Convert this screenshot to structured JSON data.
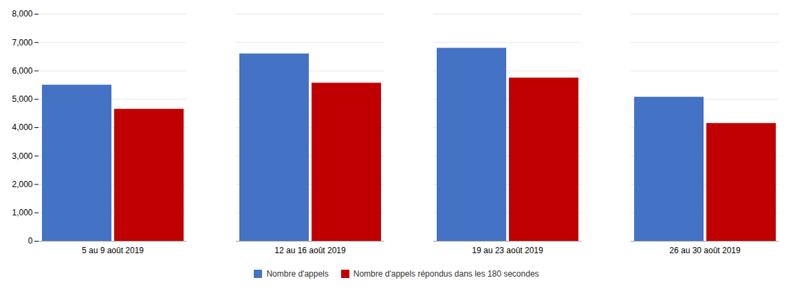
{
  "chart_data": {
    "type": "bar",
    "categories": [
      "5 au 9 août 2019",
      "12 au 16 août 2019",
      "19 au 23 août 2019",
      "26 au 30 août 2019"
    ],
    "series": [
      {
        "name": "Nombre d'appels",
        "color": "#4472C4",
        "values": [
          5500,
          6600,
          6800,
          5075
        ]
      },
      {
        "name": "Nombre d'appels répondus dans les 180 secondes",
        "color": "#C00000",
        "values": [
          4650,
          5570,
          5750,
          4150
        ]
      }
    ],
    "ylim": [
      0,
      8000
    ],
    "yticks": [
      0,
      {
        "value": 1000,
        "label": "1,000"
      },
      {
        "value": 2000,
        "label": "2,000"
      },
      {
        "value": 3000,
        "label": "3,000"
      },
      {
        "value": 4000,
        "label": "4,000"
      },
      {
        "value": 5000,
        "label": "5,000"
      },
      {
        "value": 6000,
        "label": "6,000"
      },
      {
        "value": 7000,
        "label": "7,000"
      },
      {
        "value": 8000,
        "label": "8,000"
      }
    ],
    "grid": true,
    "legend": "bottom"
  }
}
